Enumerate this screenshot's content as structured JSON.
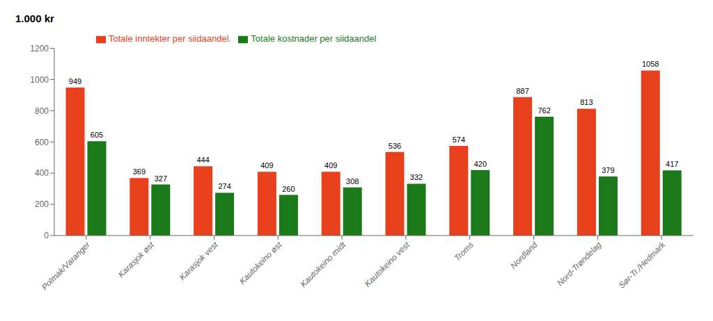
{
  "chart_data": {
    "type": "bar",
    "ylabel": "1.000 kr",
    "categories": [
      "Polmak/Varanger",
      "Karasjok øst",
      "Karasjok vest",
      "Kautokeino øst",
      "Kautokeino midt",
      "Kautokeino vest",
      "Troms",
      "Nordland",
      "Nord-Trøndelag",
      "Sør-Tr./Hedmark"
    ],
    "series": [
      {
        "name": "Totale inntekter per siidaandel.",
        "color": "#E8401C",
        "values": [
          949,
          369,
          444,
          409,
          409,
          536,
          574,
          887,
          813,
          1058
        ]
      },
      {
        "name": "Totale kostnader per siidaandel",
        "color": "#1A7A1A",
        "values": [
          605,
          327,
          274,
          260,
          308,
          332,
          420,
          762,
          379,
          417
        ]
      }
    ],
    "ylim": [
      0,
      1200
    ],
    "yticks": [
      0,
      200,
      400,
      600,
      800,
      1000,
      1200
    ],
    "grid": false,
    "legend": "upper left",
    "data_labels": true
  }
}
